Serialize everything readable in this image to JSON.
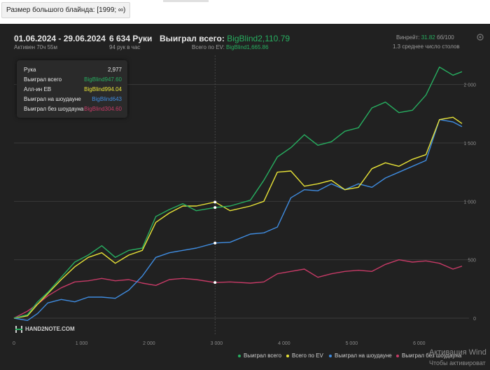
{
  "filter": {
    "label": "Размер большого блайнда: [1999; ∞)"
  },
  "header": {
    "date_range": "01.06.2024 - 29.06.2024",
    "active_time": "Активен 70ч 55м",
    "hands": "6 634 Руки",
    "hands_per_hour": "94 рук в час",
    "won_total_label": "Выиграл всего:",
    "won_total_value": "BigBlind2,110.79",
    "won_ev_label": "Всего по EV:",
    "won_ev_value": "BigBlind1,665.86",
    "winrate_label": "Винрейт:",
    "winrate_value": "31.82",
    "winrate_per": "бб/100",
    "avg_tables": "1.3 среднее число столов"
  },
  "tooltip": {
    "hand_label": "Рука",
    "hand_value": "2,977",
    "rows": [
      {
        "label": "Выиграл всего",
        "value": "BigBlind947.60",
        "color": "#27ae60"
      },
      {
        "label": "Алл-ин EB",
        "value": "BigBlind994.04",
        "color": "#e8e337"
      },
      {
        "label": "Выиграл на шоудауне",
        "value": "BigBlind643",
        "color": "#3f8ce0"
      },
      {
        "label": "Выиграл без шоудауна",
        "value": "BigBlind304.60",
        "color": "#c63a66"
      }
    ]
  },
  "legend": [
    {
      "label": "Выиграл всего",
      "color": "#27ae60"
    },
    {
      "label": "Всего по EV",
      "color": "#e8e337"
    },
    {
      "label": "Выиграл на шоудауне",
      "color": "#3f8ce0"
    },
    {
      "label": "Выиграл без шоудауна",
      "color": "#c63a66"
    }
  ],
  "logo": "HAND2NOTE.COM",
  "watermark": {
    "line1": "Активация Wind",
    "line2": "Чтобы активироват"
  },
  "chart_data": {
    "type": "line",
    "xlabel": "",
    "ylabel": "",
    "xlim": [
      0,
      6634
    ],
    "ylim": [
      -150,
      2250
    ],
    "x_ticks": [
      0,
      1000,
      2000,
      3000,
      4000,
      5000,
      6000
    ],
    "x_tick_labels": [
      "0",
      "1 000",
      "2 000",
      "3 000",
      "4 000",
      "5 000",
      "6 000"
    ],
    "y_ticks": [
      0,
      500,
      1000,
      1500,
      2000
    ],
    "y_tick_labels": [
      "0",
      "500",
      "1 000",
      "1 500",
      "2 000"
    ],
    "grid": true,
    "hover_x": 2977,
    "series": [
      {
        "name": "Выиграл всего",
        "color": "#27ae60",
        "x": [
          0,
          200,
          350,
          500,
          700,
          900,
          1100,
          1300,
          1500,
          1700,
          1900,
          2100,
          2300,
          2500,
          2700,
          2977,
          3200,
          3500,
          3700,
          3900,
          4100,
          4300,
          4500,
          4700,
          4900,
          5100,
          5300,
          5500,
          5700,
          5900,
          6100,
          6300,
          6500,
          6634
        ],
        "y": [
          0,
          30,
          140,
          220,
          350,
          480,
          540,
          620,
          520,
          580,
          600,
          870,
          930,
          980,
          920,
          947,
          960,
          1010,
          1180,
          1380,
          1460,
          1570,
          1480,
          1510,
          1600,
          1630,
          1800,
          1850,
          1760,
          1780,
          1910,
          2150,
          2080,
          2110
        ]
      },
      {
        "name": "Всего по EV",
        "color": "#e8e337",
        "x": [
          0,
          200,
          350,
          500,
          700,
          900,
          1100,
          1300,
          1500,
          1700,
          1900,
          2100,
          2300,
          2500,
          2700,
          2977,
          3200,
          3500,
          3700,
          3900,
          4100,
          4300,
          4500,
          4700,
          4900,
          5100,
          5300,
          5500,
          5700,
          5900,
          6100,
          6300,
          6500,
          6634
        ],
        "y": [
          0,
          20,
          120,
          210,
          330,
          440,
          520,
          560,
          470,
          540,
          580,
          820,
          900,
          960,
          960,
          994,
          920,
          960,
          1000,
          1250,
          1260,
          1130,
          1150,
          1180,
          1100,
          1120,
          1280,
          1330,
          1300,
          1360,
          1400,
          1700,
          1720,
          1666
        ]
      },
      {
        "name": "Выиграл на шоудауне",
        "color": "#3f8ce0",
        "x": [
          0,
          200,
          350,
          500,
          700,
          900,
          1100,
          1300,
          1500,
          1700,
          1900,
          2100,
          2300,
          2500,
          2700,
          2977,
          3200,
          3500,
          3700,
          3900,
          4100,
          4300,
          4500,
          4700,
          4900,
          5100,
          5300,
          5500,
          5700,
          5900,
          6100,
          6300,
          6500,
          6634
        ],
        "y": [
          0,
          -20,
          40,
          130,
          160,
          140,
          180,
          180,
          170,
          240,
          360,
          520,
          560,
          580,
          600,
          643,
          650,
          720,
          730,
          780,
          1030,
          1100,
          1090,
          1150,
          1100,
          1150,
          1120,
          1200,
          1250,
          1300,
          1350,
          1700,
          1680,
          1640
        ]
      },
      {
        "name": "Выиграл без шоудауна",
        "color": "#c63a66",
        "x": [
          0,
          200,
          350,
          500,
          700,
          900,
          1100,
          1300,
          1500,
          1700,
          1900,
          2100,
          2300,
          2500,
          2700,
          2977,
          3200,
          3500,
          3700,
          3900,
          4100,
          4300,
          4500,
          4700,
          4900,
          5100,
          5300,
          5500,
          5700,
          5900,
          6100,
          6300,
          6500,
          6634
        ],
        "y": [
          0,
          60,
          120,
          190,
          260,
          310,
          320,
          340,
          320,
          330,
          300,
          280,
          330,
          340,
          330,
          305,
          310,
          300,
          310,
          380,
          400,
          420,
          350,
          380,
          400,
          410,
          400,
          460,
          500,
          480,
          490,
          470,
          420,
          445
        ]
      }
    ]
  }
}
